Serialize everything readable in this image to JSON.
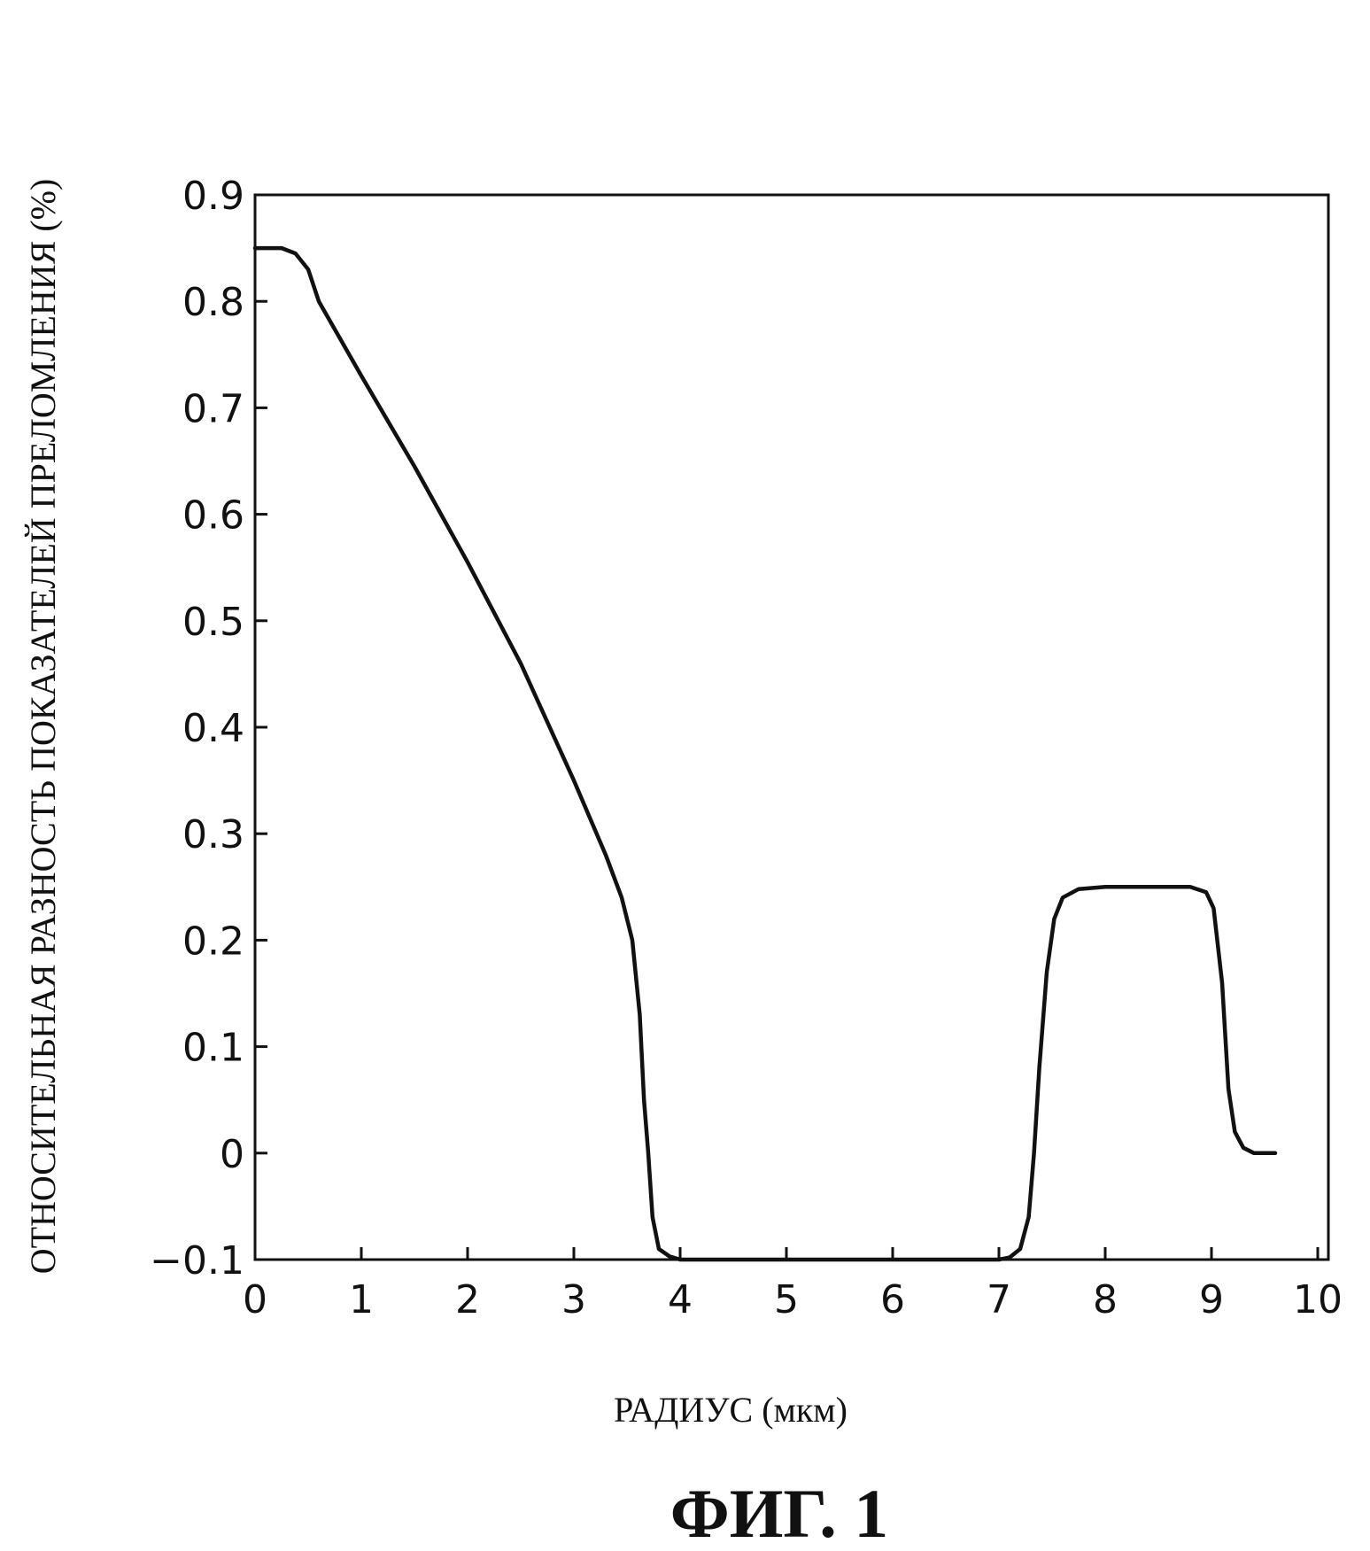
{
  "chart_data": {
    "type": "line",
    "caption": "ФИГ. 1",
    "xlabel": "РАДИУС (мкм)",
    "ylabel": "ОТНОСИТЕЛЬНАЯ  РАЗНОСТЬ  ПОКАЗАТЕЛЕЙ ПРЕЛОМЛЕНИЯ (%)",
    "xlim": [
      0,
      10
    ],
    "ylim": [
      -0.1,
      0.9
    ],
    "x_ticks": [
      "0",
      "1",
      "2",
      "3",
      "4",
      "5",
      "6",
      "7",
      "8",
      "9",
      "10"
    ],
    "y_ticks": [
      "-0.1",
      "0",
      "0.1",
      "0.2",
      "0.3",
      "0.4",
      "0.5",
      "0.6",
      "0.7",
      "0.8",
      "0.9"
    ],
    "grid": false,
    "series": [
      {
        "points": [
          [
            0.0,
            0.85
          ],
          [
            0.25,
            0.85
          ],
          [
            0.38,
            0.845
          ],
          [
            0.5,
            0.83
          ],
          [
            0.6,
            0.8
          ],
          [
            1.0,
            0.73
          ],
          [
            1.5,
            0.645
          ],
          [
            2.0,
            0.555
          ],
          [
            2.5,
            0.46
          ],
          [
            3.0,
            0.35
          ],
          [
            3.3,
            0.28
          ],
          [
            3.45,
            0.24
          ],
          [
            3.55,
            0.2
          ],
          [
            3.62,
            0.13
          ],
          [
            3.66,
            0.05
          ],
          [
            3.7,
            0.0
          ],
          [
            3.74,
            -0.06
          ],
          [
            3.8,
            -0.09
          ],
          [
            3.9,
            -0.097
          ],
          [
            4.0,
            -0.1
          ],
          [
            5.0,
            -0.1
          ],
          [
            6.0,
            -0.1
          ],
          [
            7.0,
            -0.1
          ],
          [
            7.1,
            -0.098
          ],
          [
            7.2,
            -0.09
          ],
          [
            7.28,
            -0.06
          ],
          [
            7.33,
            0.0
          ],
          [
            7.38,
            0.08
          ],
          [
            7.45,
            0.17
          ],
          [
            7.52,
            0.22
          ],
          [
            7.6,
            0.24
          ],
          [
            7.75,
            0.248
          ],
          [
            8.0,
            0.25
          ],
          [
            8.5,
            0.25
          ],
          [
            8.8,
            0.25
          ],
          [
            8.95,
            0.245
          ],
          [
            9.02,
            0.23
          ],
          [
            9.1,
            0.16
          ],
          [
            9.16,
            0.06
          ],
          [
            9.22,
            0.02
          ],
          [
            9.3,
            0.005
          ],
          [
            9.4,
            0.0
          ],
          [
            9.5,
            0.0
          ],
          [
            9.6,
            0.0
          ]
        ]
      }
    ]
  }
}
